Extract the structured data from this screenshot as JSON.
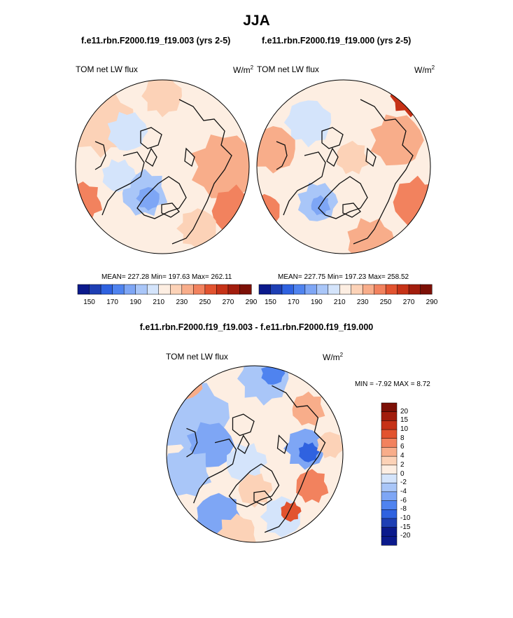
{
  "page_title": "JJA",
  "panel_a": {
    "case": "f.e11.rbn.F2000.f19_f19.003 (yrs 2-5)",
    "variable": "TOM net LW flux",
    "unit": "W/m",
    "unit_exp": "2",
    "stats": "MEAN= 227.28  Min= 197.63  Max= 262.11"
  },
  "panel_b": {
    "case": "f.e11.rbn.F2000.f19_f19.000 (yrs 2-5)",
    "variable": "TOM net LW flux",
    "unit": "W/m",
    "unit_exp": "2",
    "stats": "MEAN= 227.75  Min= 197.23  Max= 258.52"
  },
  "diff": {
    "title": "f.e11.rbn.F2000.f19_f19.003 - f.e11.rbn.F2000.f19_f19.000",
    "variable": "TOM net LW flux",
    "unit": "W/m",
    "unit_exp": "2",
    "minmax": "MIN =  -7.92 MAX =   8.72"
  },
  "colorbar_abs": {
    "colors": [
      "#0b1a8c",
      "#1e3fb4",
      "#2f62e0",
      "#4f83ef",
      "#7ea6f5",
      "#a9c6f8",
      "#d4e4fb",
      "#fdeee2",
      "#fcd2b7",
      "#f8ad8a",
      "#f2825e",
      "#e2532f",
      "#c63217",
      "#a21d0d",
      "#7c1006"
    ],
    "ticks": [
      "150",
      "170",
      "190",
      "210",
      "230",
      "250",
      "270",
      "290"
    ]
  },
  "colorbar_diff": {
    "colors": [
      "#0b1a8c",
      "#1e3fb4",
      "#2f62e0",
      "#4f83ef",
      "#7ea6f5",
      "#a9c6f8",
      "#d4e4fb",
      "#fdeee2",
      "#fcd2b7",
      "#f8ad8a",
      "#f2825e",
      "#e2532f",
      "#c63217",
      "#a21d0d",
      "#7c1006"
    ],
    "ticks": [
      "20",
      "15",
      "10",
      "8",
      "6",
      "4",
      "2",
      "0",
      "-2",
      "-4",
      "-6",
      "-8",
      "-10",
      "-15",
      "-20"
    ]
  }
}
